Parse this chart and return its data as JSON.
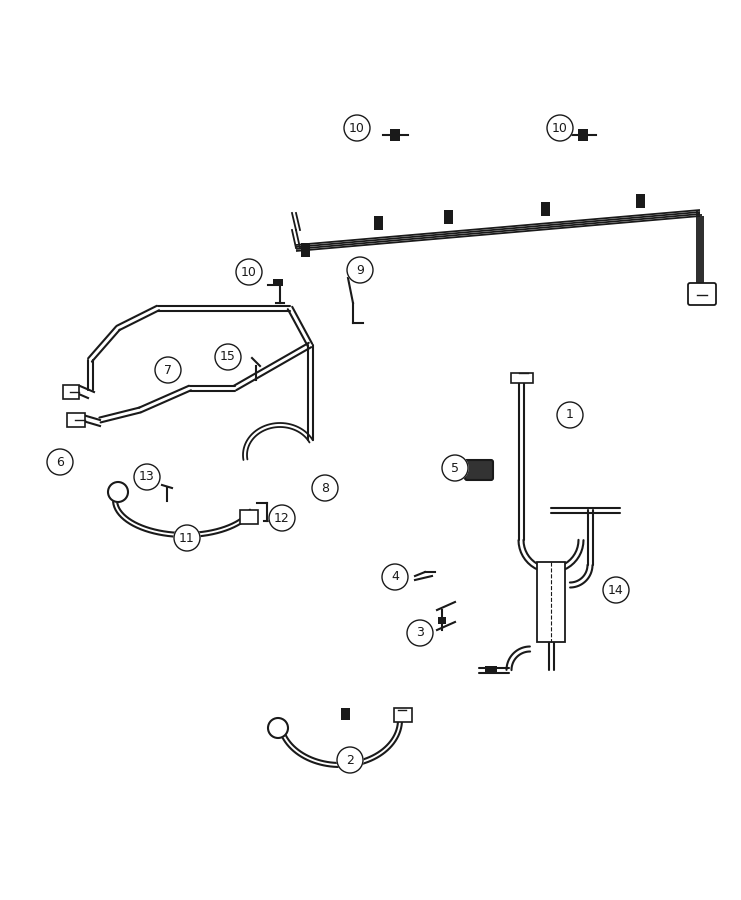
{
  "background_color": "#ffffff",
  "line_color": "#1a1a1a",
  "fig_width": 7.41,
  "fig_height": 9.0,
  "dpi": 100,
  "lw_main": 1.8,
  "lw_hose": 1.4,
  "lw_thick": 2.2
}
